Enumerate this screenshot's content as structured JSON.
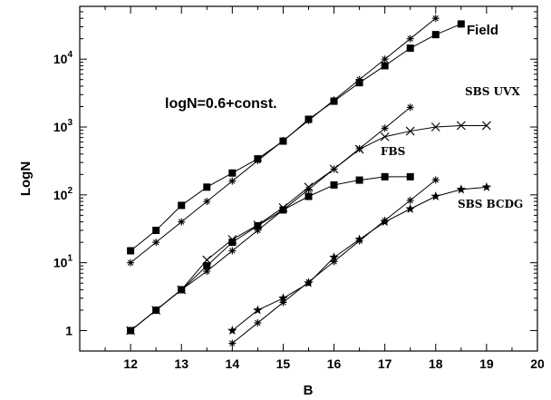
{
  "chart_data": {
    "type": "line",
    "title": "",
    "xlabel": "B",
    "ylabel": "LogN",
    "xlim": [
      11,
      20
    ],
    "ylim": [
      0.5,
      60000
    ],
    "yscale": "log",
    "grid": false,
    "xticks": [
      12,
      13,
      14,
      15,
      16,
      17,
      18,
      19,
      20
    ],
    "yticks": [
      {
        "value": 1,
        "base": "1",
        "exp": ""
      },
      {
        "value": 10,
        "base": "10",
        "exp": "1"
      },
      {
        "value": 100,
        "base": "10",
        "exp": "2"
      },
      {
        "value": 1000,
        "base": "10",
        "exp": "3"
      },
      {
        "value": 10000,
        "base": "10",
        "exp": "4"
      }
    ],
    "annotations": [
      {
        "id": "formula",
        "text": "logN=0.6+const."
      },
      {
        "id": "field",
        "text": "Field"
      },
      {
        "id": "sbs-uvx",
        "text": "SBS UVX"
      },
      {
        "id": "fbs",
        "text": "FBS"
      },
      {
        "id": "sbs-bcdg",
        "text": "SBS BCDG"
      }
    ],
    "series": [
      {
        "key": "field",
        "marker": "square",
        "x": [
          12,
          12.5,
          13,
          13.5,
          14,
          14.5,
          15,
          15.5,
          16,
          16.5,
          17,
          17.5,
          18,
          18.5
        ],
        "y": [
          15,
          30,
          70,
          130,
          210,
          340,
          620,
          1300,
          2400,
          4500,
          8000,
          14500,
          23000,
          33000
        ]
      },
      {
        "key": "field-ref",
        "marker": "asterisk",
        "x": [
          12,
          12.5,
          13,
          13.5,
          14,
          14.5,
          15,
          15.5,
          16,
          16.5,
          17,
          17.5,
          18
        ],
        "y": [
          10,
          20,
          40,
          80,
          160,
          320,
          630,
          1250,
          2500,
          5000,
          10000,
          20000,
          40000
        ]
      },
      {
        "key": "sbs-uvx",
        "marker": "cross",
        "x": [
          12,
          12.5,
          13,
          13.5,
          14,
          14.5,
          15,
          15.5,
          16,
          16.5,
          17,
          17.5,
          18,
          18.5,
          19
        ],
        "y": [
          1,
          2,
          4,
          11,
          22,
          36,
          65,
          130,
          240,
          470,
          720,
          870,
          1000,
          1050,
          1050
        ]
      },
      {
        "key": "uvx-ref",
        "marker": "asterisk",
        "x": [
          12,
          12.5,
          13,
          13.5,
          14,
          14.5,
          15,
          15.5,
          16,
          16.5,
          17,
          17.5
        ],
        "y": [
          1,
          2,
          4,
          7.5,
          15,
          30,
          60,
          120,
          240,
          480,
          960,
          1950
        ]
      },
      {
        "key": "fbs",
        "marker": "square",
        "x": [
          12,
          12.5,
          13,
          13.5,
          14,
          14.5,
          15,
          15.5,
          16,
          16.5,
          17,
          17.5
        ],
        "y": [
          1,
          2,
          4,
          9,
          20,
          35,
          60,
          95,
          140,
          165,
          185,
          185
        ]
      },
      {
        "key": "sbs-bcdg",
        "marker": "star",
        "x": [
          14,
          14.5,
          15,
          15.5,
          16,
          16.5,
          17,
          17.5,
          18,
          18.5,
          19
        ],
        "y": [
          1,
          2,
          3,
          5,
          12,
          22,
          40,
          62,
          95,
          120,
          130
        ]
      },
      {
        "key": "bcdg-ref",
        "marker": "asterisk",
        "x": [
          14,
          14.5,
          15,
          15.5,
          16,
          16.5,
          17,
          17.5,
          18
        ],
        "y": [
          0.65,
          1.3,
          2.6,
          5.2,
          10.4,
          21,
          42,
          83,
          166
        ]
      }
    ]
  }
}
